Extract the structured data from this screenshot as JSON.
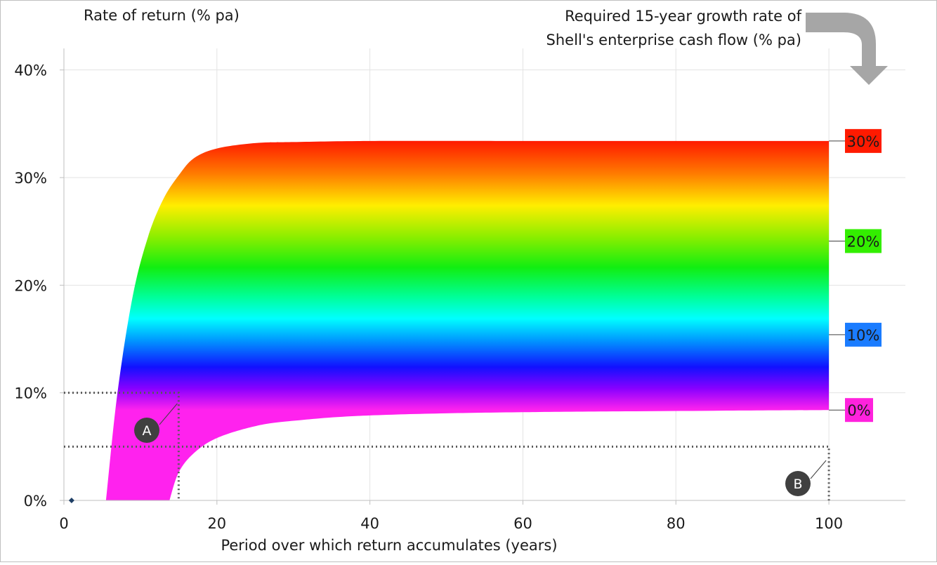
{
  "chart_data": {
    "type": "area",
    "ylabel": "Rate of return (% pa)",
    "xlabel": "Period over which return accumulates (years)",
    "xlim": [
      0,
      110
    ],
    "ylim": [
      0,
      0.42
    ],
    "x_ticks": [
      0,
      20,
      40,
      60,
      80,
      100
    ],
    "x_tick_labels": [
      "0",
      "20",
      "40",
      "60",
      "80",
      "100"
    ],
    "y_ticks": [
      0,
      0.1,
      0.2,
      0.3,
      0.4
    ],
    "y_tick_labels": [
      "0%",
      "10%",
      "20%",
      "30%",
      "40%"
    ],
    "grid": true,
    "legend_title_lines": [
      "Required 15-year growth rate of",
      "Shell's enterprise cash flow (% pa)"
    ],
    "growth_rates": [
      0,
      0.1,
      0.2,
      0.3
    ],
    "series_labels": [
      {
        "label": "30%",
        "growth": 0.3,
        "y_at_100": 0.334,
        "color": "#ff1a00"
      },
      {
        "label": "20%",
        "growth": 0.2,
        "y_at_100": 0.241,
        "color": "#33ee00"
      },
      {
        "label": "10%",
        "growth": 0.1,
        "y_at_100": 0.154,
        "color": "#1a7cff"
      },
      {
        "label": "0%",
        "growth": 0.0,
        "y_at_100": 0.084,
        "color": "#ff22dd"
      }
    ],
    "band_boundaries": {
      "upper": {
        "growth": 0.3,
        "x": [
          5.5,
          7,
          9,
          11,
          13,
          15,
          17,
          20,
          25,
          30,
          40,
          60,
          100
        ],
        "y": [
          0,
          0.1,
          0.19,
          0.245,
          0.28,
          0.302,
          0.318,
          0.327,
          0.332,
          0.333,
          0.334,
          0.334,
          0.334
        ]
      },
      "lower": {
        "growth": 0.0,
        "x": [
          13.8,
          15,
          17,
          20,
          25,
          30,
          40,
          60,
          100
        ],
        "y": [
          0,
          0.026,
          0.044,
          0.058,
          0.069,
          0.074,
          0.079,
          0.082,
          0.084
        ]
      }
    },
    "reference_lines": [
      {
        "marker": "A",
        "x": 15,
        "y": 0.1
      },
      {
        "marker": "B",
        "x": 100,
        "y": 0.05
      }
    ],
    "point": {
      "x": 1,
      "y": 0,
      "color": "#1f3f66"
    },
    "arrow_color": "#a6a6a6"
  }
}
